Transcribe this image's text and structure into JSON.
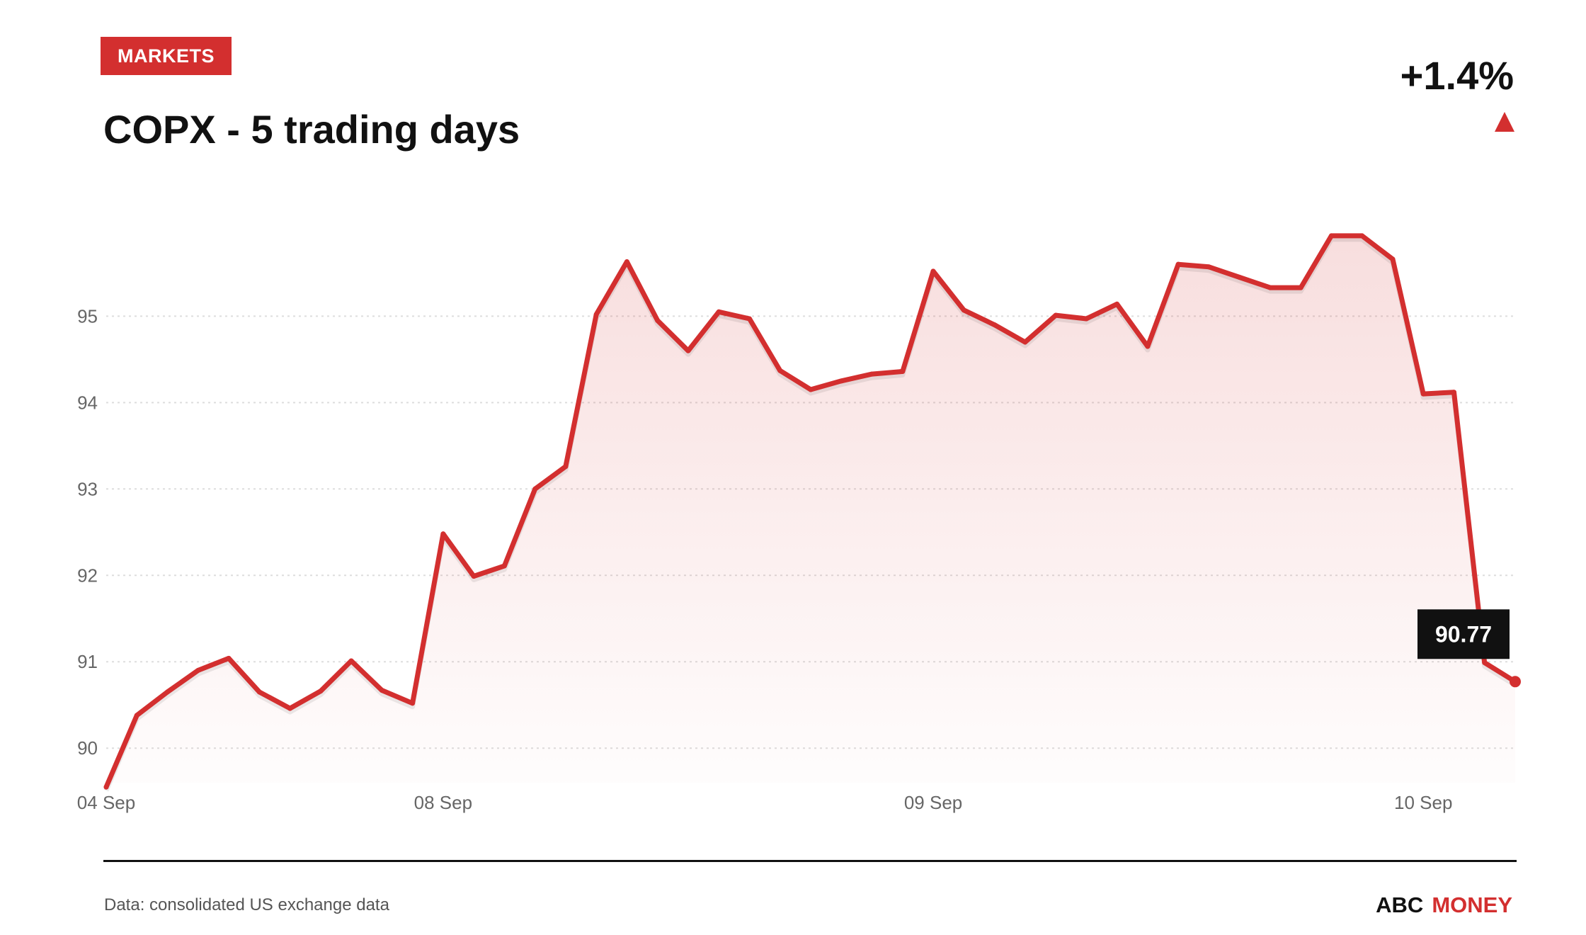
{
  "header": {
    "badge": "MARKETS",
    "title": "COPX - 5 trading days",
    "change": "+1.4%",
    "change_icon": "triangle-up-icon"
  },
  "footer": {
    "source": "Data: consolidated US exchange data",
    "brand_primary": "ABC",
    "brand_secondary": "MONEY"
  },
  "colors": {
    "accent": "#d32f2f",
    "text": "#111111",
    "muted": "#666666",
    "grid": "#dddddd"
  },
  "chart_data": {
    "type": "area",
    "title": "COPX - 5 trading days",
    "xlabel": "",
    "ylabel": "",
    "ylim": [
      89.6,
      96.2
    ],
    "y_ticks": [
      90,
      91,
      92,
      93,
      94,
      95
    ],
    "x_ticks": [
      {
        "index": 0,
        "label": "04 Sep"
      },
      {
        "index": 11,
        "label": "08 Sep"
      },
      {
        "index": 27,
        "label": "09 Sep"
      },
      {
        "index": 43,
        "label": "10 Sep"
      }
    ],
    "grid": true,
    "legend": "none",
    "last_value_label": "90.77",
    "series": [
      {
        "values": [
          89.55,
          90.38,
          90.65,
          90.9,
          91.04,
          90.65,
          90.46,
          90.66,
          91.01,
          90.67,
          90.52,
          92.48,
          91.99,
          92.11,
          93.0,
          93.26,
          95.02,
          95.63,
          94.95,
          94.6,
          95.05,
          94.97,
          94.37,
          94.15,
          94.25,
          94.33,
          94.36,
          95.52,
          95.07,
          94.9,
          94.7,
          95.01,
          94.97,
          95.14,
          94.65,
          95.6,
          95.57,
          95.45,
          95.33,
          95.33,
          95.93,
          95.93,
          95.66,
          94.1,
          94.12,
          90.99,
          90.77
        ]
      }
    ]
  }
}
